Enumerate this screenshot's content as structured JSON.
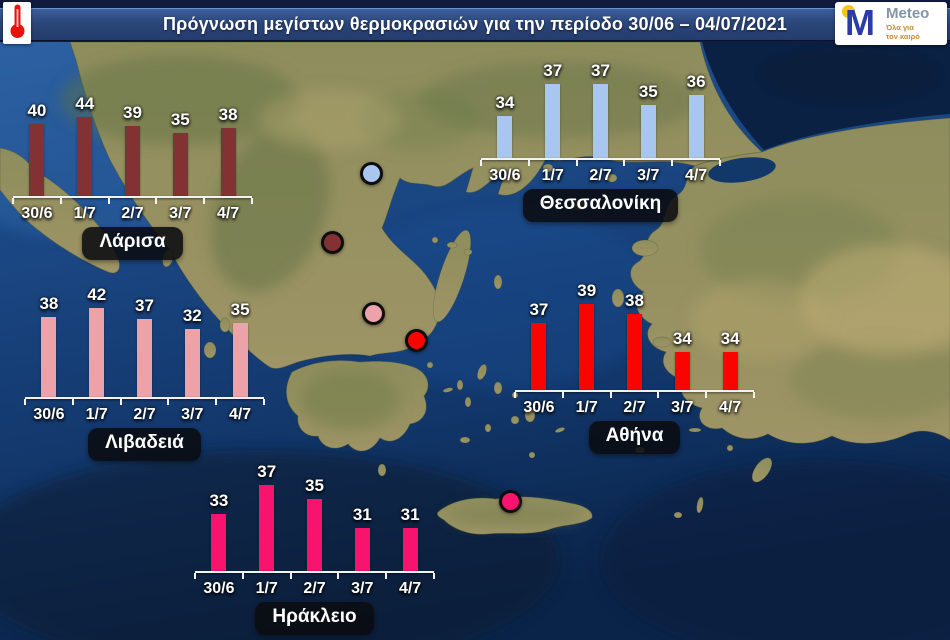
{
  "header": {
    "title": "Πρόγνωση μεγίστων θερμοκρασιών για την περίοδο 30/06 – 04/07/2021",
    "logo": {
      "brand": "Meteo",
      "logo_letter": "M",
      "tagline_line1": "Όλα για",
      "tagline_line2": "τον καιρό"
    }
  },
  "colors": {
    "header_bar": "#2b4679",
    "larisa_bars": "#823232",
    "thessaloniki_bars": "#a9c6ee",
    "livadeia_bars": "#eba2a8",
    "athina_bars": "#fb0400",
    "irakleio_bars": "#f8136f"
  },
  "chart_data": [
    {
      "type": "bar",
      "title": "Λάρισα",
      "categories": [
        "30/6",
        "1/7",
        "2/7",
        "3/7",
        "4/7"
      ],
      "values": [
        40,
        44,
        39,
        35,
        38
      ],
      "bar_color": "#823232",
      "ylim": [
        0,
        50
      ],
      "xlabel": "",
      "ylabel": "",
      "legend_position": "none",
      "grid": false
    },
    {
      "type": "bar",
      "title": "Θεσσαλονίκη",
      "categories": [
        "30/6",
        "1/7",
        "2/7",
        "3/7",
        "4/7"
      ],
      "values": [
        34,
        37,
        37,
        35,
        36
      ],
      "bar_color": "#a9c6ee",
      "ylim": [
        30,
        38
      ],
      "xlabel": "",
      "ylabel": "",
      "legend_position": "none",
      "grid": false
    },
    {
      "type": "bar",
      "title": "Λιβαδειά",
      "categories": [
        "30/6",
        "1/7",
        "2/7",
        "3/7",
        "4/7"
      ],
      "values": [
        38,
        42,
        37,
        32,
        35
      ],
      "bar_color": "#eba2a8",
      "ylim": [
        0,
        45
      ],
      "xlabel": "",
      "ylabel": "",
      "legend_position": "none",
      "grid": false
    },
    {
      "type": "bar",
      "title": "Αθήνα",
      "categories": [
        "30/6",
        "1/7",
        "2/7",
        "3/7",
        "4/7"
      ],
      "values": [
        37,
        39,
        38,
        34,
        34
      ],
      "bar_color": "#fb0400",
      "ylim": [
        30,
        40
      ],
      "xlabel": "",
      "ylabel": "",
      "legend_position": "none",
      "grid": false
    },
    {
      "type": "bar",
      "title": "Ηράκλειο",
      "categories": [
        "30/6",
        "1/7",
        "2/7",
        "3/7",
        "4/7"
      ],
      "values": [
        33,
        37,
        35,
        31,
        31
      ],
      "bar_color": "#f8136f",
      "ylim": [
        25,
        37
      ],
      "xlabel": "",
      "ylabel": "",
      "legend_position": "none",
      "grid": false
    }
  ],
  "markers": [
    {
      "city": "Θεσσαλονίκη",
      "color": "#a9c6ee"
    },
    {
      "city": "Λάρισα",
      "color": "#823232"
    },
    {
      "city": "Λιβαδειά",
      "color": "#eba2a8"
    },
    {
      "city": "Αθήνα",
      "color": "#fb0400"
    },
    {
      "city": "Ηράκλειο",
      "color": "#f8136f"
    }
  ]
}
